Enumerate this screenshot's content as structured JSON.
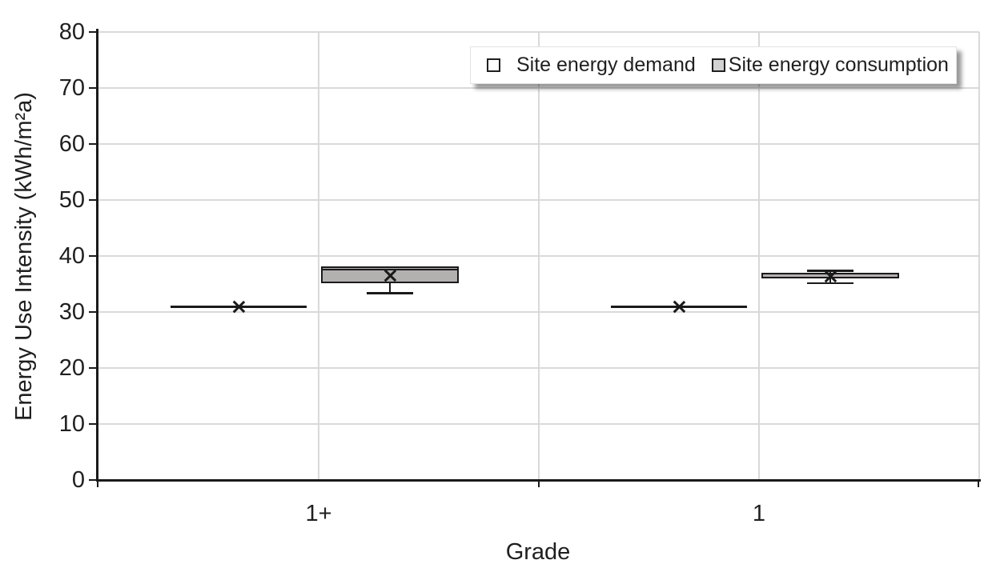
{
  "chart_data": {
    "type": "boxplot",
    "title": "",
    "xlabel": "Grade",
    "ylabel": "Energy Use Intensity (kWh/m²a)",
    "ylim": [
      0,
      80
    ],
    "yticks": [
      0,
      10,
      20,
      30,
      40,
      50,
      60,
      70,
      80
    ],
    "categories": [
      "1+",
      "1"
    ],
    "grid": {
      "horizontal": true,
      "vertical": true,
      "color": "#d9d9d9"
    },
    "axis_color": "#1a1a1a",
    "legend": {
      "position": "top-right",
      "items": [
        {
          "label": "Site energy demand",
          "fill": "#ffffff"
        },
        {
          "label": "Site energy consumption",
          "fill": "#d2d2d2"
        }
      ]
    },
    "series": [
      {
        "name": "Site energy demand",
        "fill": "#ffffff",
        "border": "#1a1a1a",
        "boxes": [
          {
            "category": "1+",
            "min": 30.9,
            "q1": 30.9,
            "median": 30.9,
            "q3": 30.9,
            "max": 30.9,
            "mean": 30.9
          },
          {
            "category": "1",
            "min": 30.9,
            "q1": 30.9,
            "median": 30.9,
            "q3": 30.9,
            "max": 30.9,
            "mean": 30.9
          }
        ]
      },
      {
        "name": "Site energy consumption",
        "fill": "#b3b1b0",
        "border": "#1a1a1a",
        "boxes": [
          {
            "category": "1+",
            "min": 33.4,
            "q1": 35.1,
            "median": 37.6,
            "q3": 38.1,
            "max": 38.1,
            "mean": 36.5
          },
          {
            "category": "1",
            "min": 35.2,
            "q1": 36.0,
            "median": 36.9,
            "q3": 37.0,
            "max": 37.4,
            "mean": 36.4
          }
        ]
      }
    ]
  }
}
